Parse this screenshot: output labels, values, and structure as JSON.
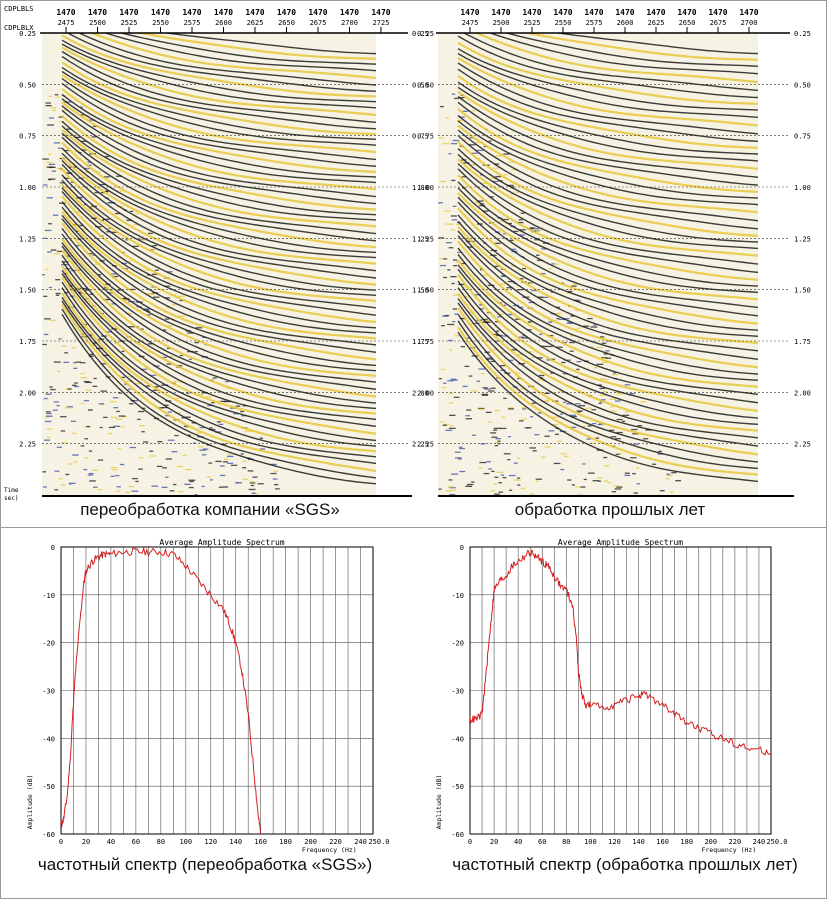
{
  "seismic": {
    "header_labels": [
      "CDPLBLS",
      "CDPLBLX"
    ],
    "time_unit_label": [
      "Time",
      "sec)"
    ],
    "panels": [
      {
        "caption": "переобработка компании «SGS»",
        "top_labels": [
          "1470",
          "1470",
          "1470",
          "1470",
          "1470",
          "1470",
          "1470",
          "1470",
          "1470",
          "1470",
          "1470"
        ],
        "bottom_labels": [
          "2475",
          "2500",
          "2525",
          "2550",
          "2575",
          "2600",
          "2625",
          "2650",
          "2675",
          "2700",
          "2725"
        ],
        "time_ticks": [
          "0.25",
          "0.50",
          "0.75",
          "1.00",
          "1.25",
          "1.50",
          "1.75",
          "2.00",
          "2.25"
        ]
      },
      {
        "caption": "обработка прошлых лет",
        "top_labels": [
          "1470",
          "1470",
          "1470",
          "1470",
          "1470",
          "1470",
          "1470",
          "1470",
          "1470",
          "1470"
        ],
        "bottom_labels": [
          "2475",
          "2500",
          "2525",
          "2550",
          "2575",
          "2600",
          "2625",
          "2650",
          "2675",
          "2700"
        ],
        "time_ticks": [
          "0.25",
          "0.50",
          "0.75",
          "1.00",
          "1.25",
          "1.50",
          "1.75",
          "2.00",
          "2.25"
        ]
      }
    ],
    "colors": {
      "peak": "#1a1a1a",
      "trough": "#e8c53a",
      "noise": "#3a4fa8"
    }
  },
  "chart_data": [
    {
      "type": "line",
      "title": "Average Amplitude Spectrum",
      "caption": "частотный спектр (переобработка «SGS»)",
      "xlabel": "Frequency (Hz)",
      "ylabel": "Amplitude (dB)",
      "xlim": [
        0,
        250
      ],
      "ylim": [
        -60,
        0
      ],
      "x_ticks": [
        "0",
        "20",
        "40",
        "60",
        "80",
        "100",
        "120",
        "140",
        "160",
        "180",
        "200",
        "220",
        "240",
        "250.0"
      ],
      "y_ticks": [
        "0",
        "-10",
        "-20",
        "-30",
        "-40",
        "-50",
        "-60"
      ],
      "grid": true,
      "color": "#d42020",
      "x": [
        0,
        2,
        5,
        8,
        10,
        12,
        15,
        18,
        20,
        25,
        30,
        35,
        40,
        50,
        60,
        70,
        80,
        90,
        100,
        110,
        120,
        130,
        135,
        140,
        145,
        150,
        155,
        158,
        160
      ],
      "y": [
        -58,
        -57,
        -52,
        -42,
        -32,
        -25,
        -16,
        -8,
        -5,
        -3,
        -2,
        -1.5,
        -1.5,
        -1,
        -1,
        -1,
        -1,
        -1.5,
        -4,
        -7,
        -10,
        -13,
        -16,
        -20,
        -26,
        -35,
        -48,
        -56,
        -60
      ]
    },
    {
      "type": "line",
      "title": "Average Amplitude Spectrum",
      "caption": "частотный спектр (обработка прошлых лет)",
      "xlabel": "Frequency (Hz)",
      "ylabel": "Amplitude (dB)",
      "xlim": [
        0,
        250
      ],
      "ylim": [
        -60,
        0
      ],
      "x_ticks": [
        "0",
        "20",
        "40",
        "60",
        "80",
        "100",
        "120",
        "140",
        "160",
        "180",
        "200",
        "220",
        "240",
        "250.0"
      ],
      "y_ticks": [
        "0",
        "-10",
        "-20",
        "-30",
        "-40",
        "-50",
        "-60"
      ],
      "grid": true,
      "color": "#d42020",
      "x": [
        0,
        5,
        10,
        12,
        15,
        18,
        20,
        25,
        30,
        35,
        40,
        45,
        50,
        55,
        60,
        65,
        70,
        75,
        80,
        85,
        88,
        90,
        93,
        96,
        100,
        110,
        120,
        130,
        140,
        145,
        150,
        160,
        170,
        180,
        190,
        200,
        210,
        220,
        230,
        240,
        250
      ],
      "y": [
        -36,
        -36,
        -35,
        -30,
        -22,
        -14,
        -9,
        -7,
        -6,
        -4,
        -3,
        -2,
        -1,
        -2,
        -3,
        -4,
        -6,
        -8,
        -9,
        -12,
        -18,
        -26,
        -31,
        -33,
        -33,
        -33.5,
        -33,
        -32,
        -31,
        -31,
        -31.5,
        -33,
        -35,
        -36.5,
        -38,
        -39,
        -40,
        -41,
        -42,
        -42.5,
        -43
      ]
    }
  ]
}
